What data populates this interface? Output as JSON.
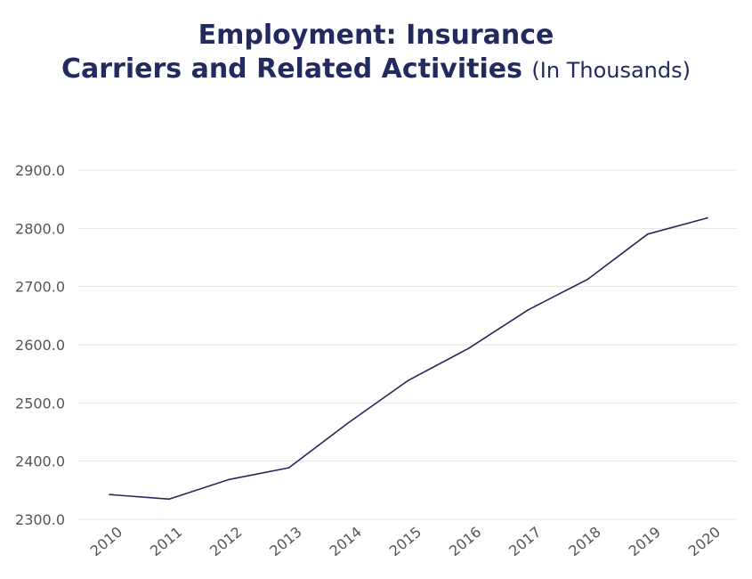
{
  "chart_data": {
    "type": "line",
    "title": "Employment: Insurance Carriers and Related Activities",
    "title_line1": "Employment: Insurance",
    "title_line2": "Carriers and Related Activities",
    "title_unit": "(In Thousands)",
    "xlabel": "",
    "ylabel": "",
    "x": [
      "2010",
      "2011",
      "2012",
      "2013",
      "2014",
      "2015",
      "2016",
      "2017",
      "2018",
      "2019",
      "2020"
    ],
    "series": [
      {
        "values": [
          2342.5,
          2334.8,
          2368.4,
          2388.6,
          2466.2,
          2539.0,
          2593.4,
          2659.9,
          2712.6,
          2790.1,
          2818.0
        ]
      }
    ],
    "ylim": [
      2300,
      2900
    ],
    "yticks": [
      "2300.0",
      "2400.0",
      "2500.0",
      "2600.0",
      "2700.0",
      "2800.0",
      "2900.0"
    ],
    "grid": true,
    "legend": "none",
    "line_color": "#2b2457",
    "grid_color": "#e4e4e4",
    "title_color": "#222a5f"
  }
}
